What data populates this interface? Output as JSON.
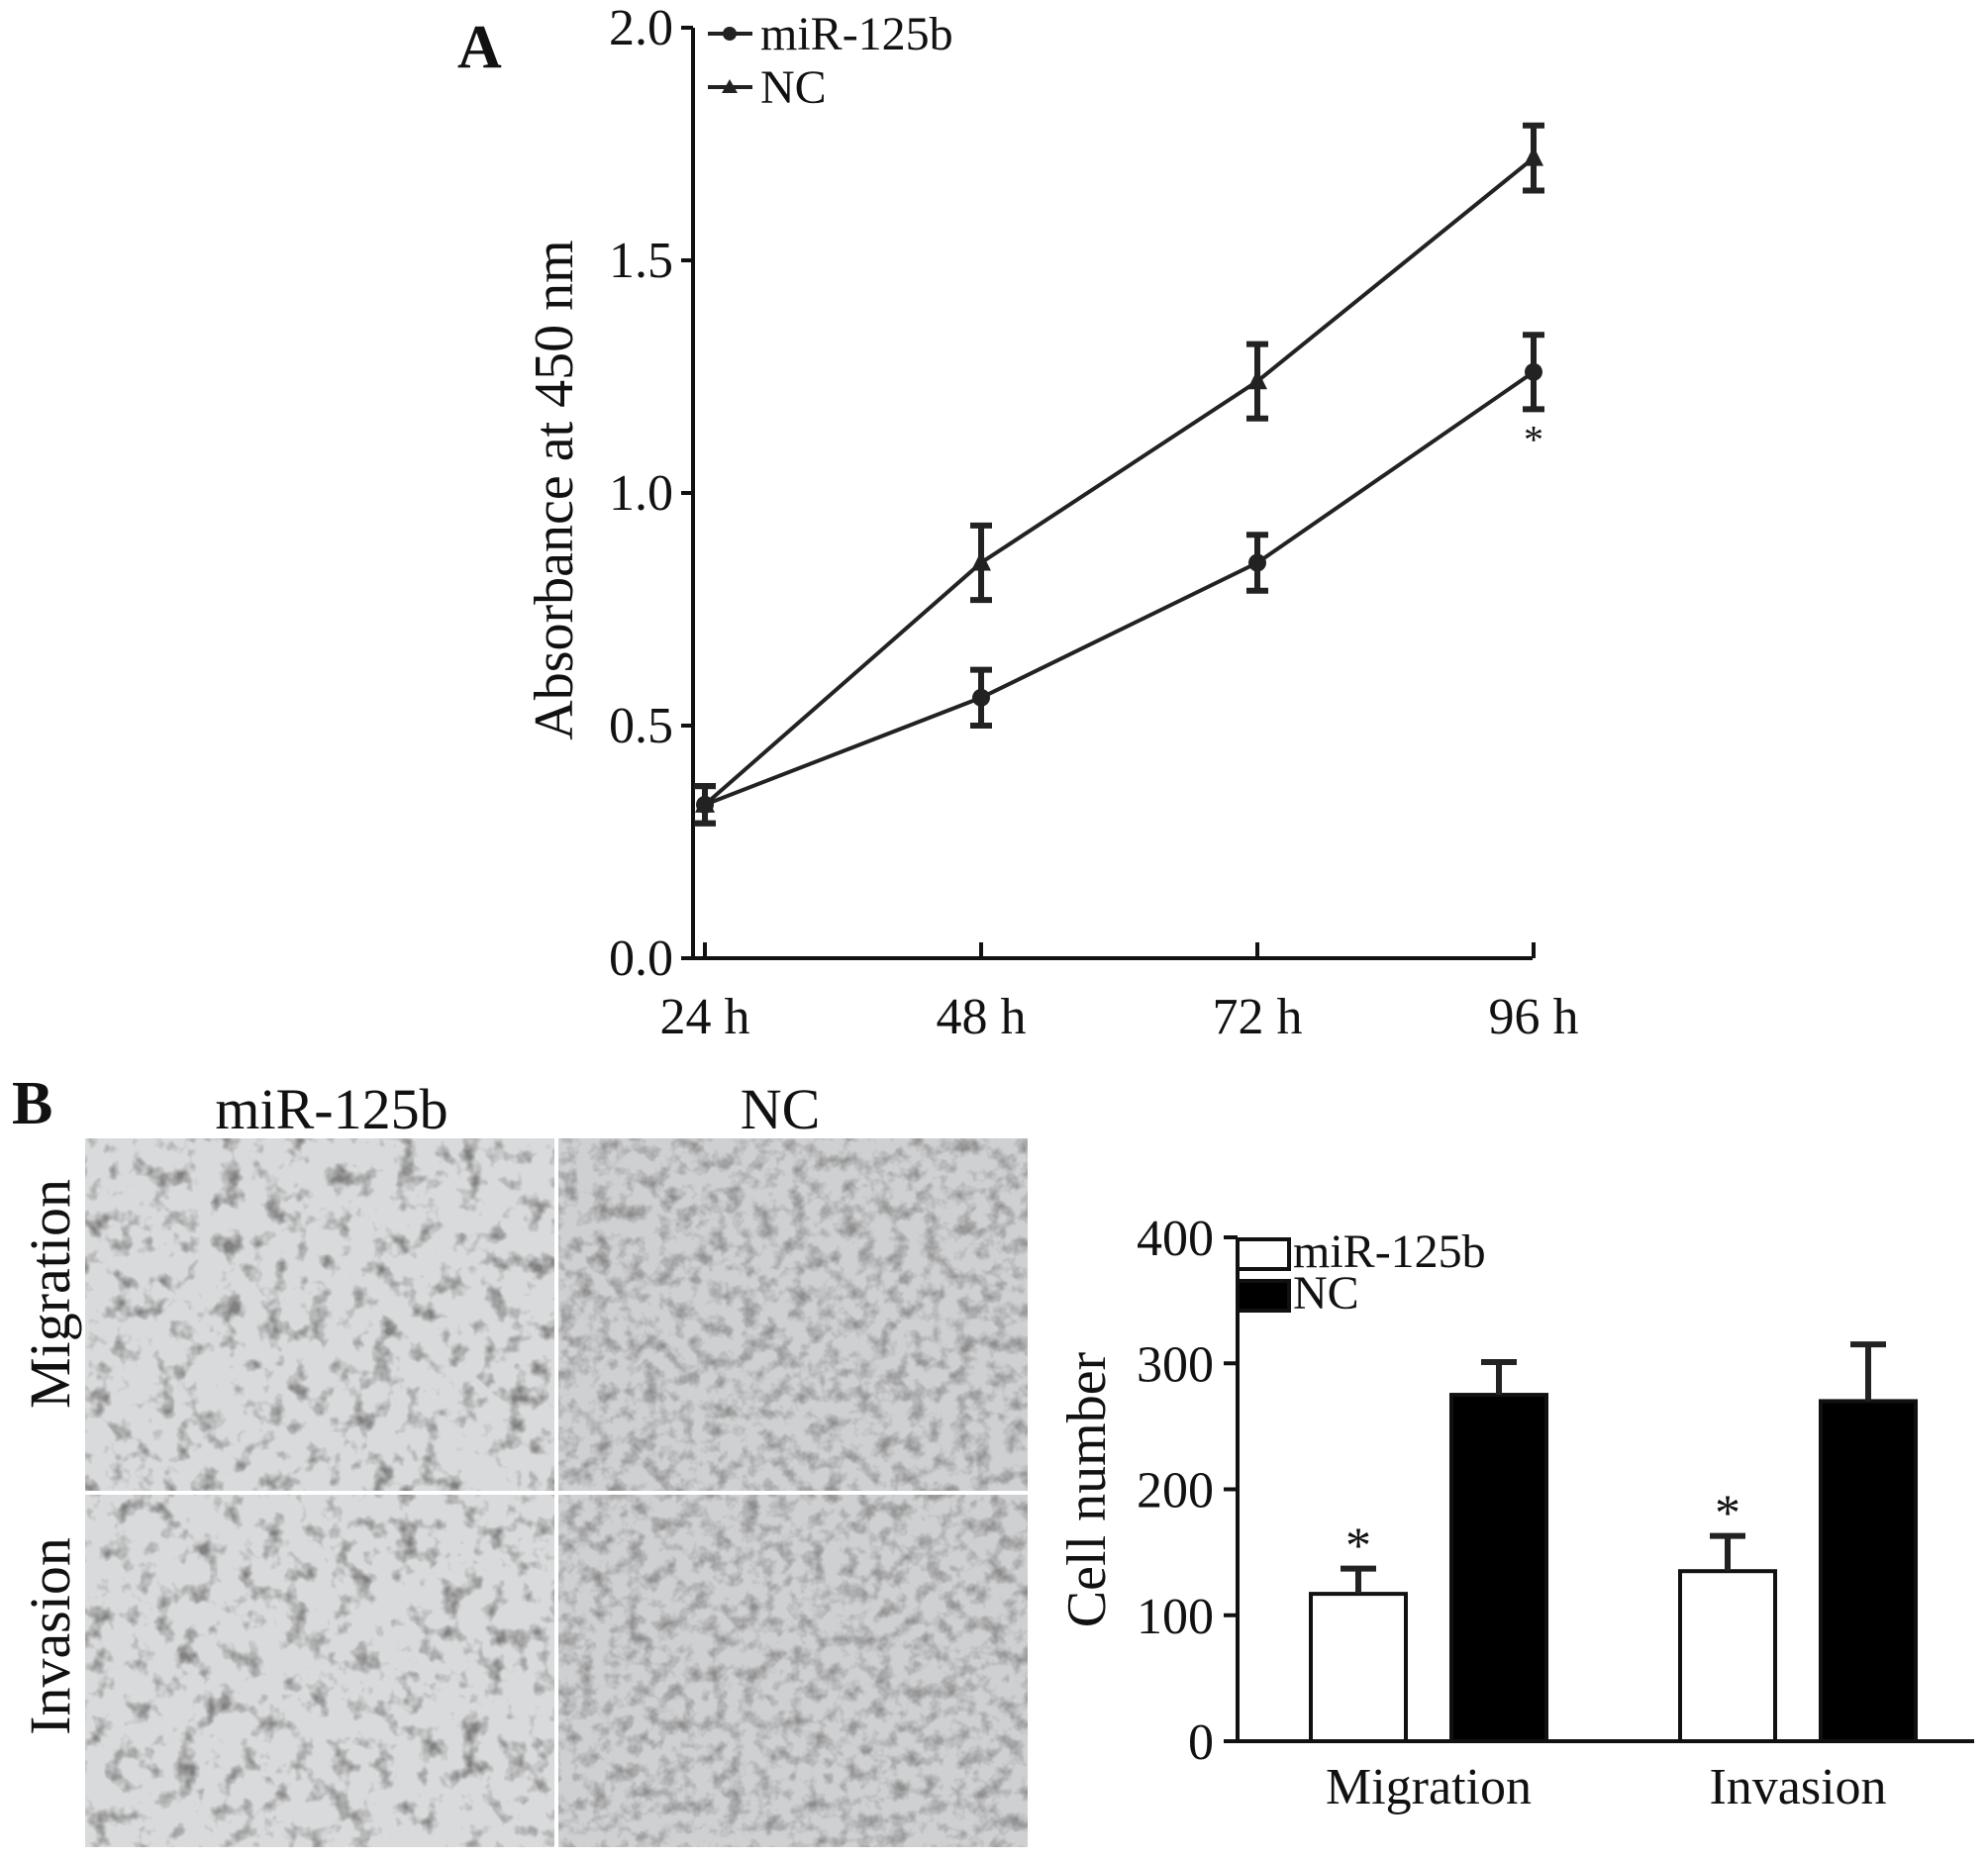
{
  "panels": {
    "a": "A",
    "b": "B"
  },
  "chart_data": [
    {
      "type": "line",
      "panel": "A",
      "ylabel": "Absorbance at 450 nm",
      "xlabel": "",
      "categories": [
        "24 h",
        "48 h",
        "72 h",
        "96 h"
      ],
      "ylim": [
        0,
        2.0
      ],
      "yticks": [
        "0.0",
        "0.5",
        "1.0",
        "1.5",
        "2.0"
      ],
      "series": [
        {
          "name": "miR-125b",
          "marker": "circle",
          "values": [
            0.33,
            0.56,
            0.85,
            1.26
          ],
          "errors": [
            0.04,
            0.06,
            0.06,
            0.08
          ]
        },
        {
          "name": "NC",
          "marker": "triangle",
          "values": [
            0.33,
            0.85,
            1.24,
            1.72
          ],
          "errors": [
            0.04,
            0.08,
            0.08,
            0.07
          ]
        }
      ],
      "annotations": [
        {
          "text": "*",
          "category": "96 h"
        }
      ],
      "legend": "top-left"
    },
    {
      "type": "bar",
      "panel": "B",
      "ylabel": "Cell number",
      "xlabel": "",
      "categories": [
        "Migration",
        "Invasion"
      ],
      "ylim": [
        0,
        400
      ],
      "yticks": [
        "0",
        "100",
        "200",
        "300",
        "400"
      ],
      "series": [
        {
          "name": "miR-125b",
          "color": "#ffffff",
          "values": [
            117,
            135
          ],
          "errors": [
            20,
            28
          ]
        },
        {
          "name": "NC",
          "color": "#000000",
          "values": [
            275,
            270
          ],
          "errors": [
            26,
            45
          ]
        }
      ],
      "annotations": [
        {
          "text": "*",
          "category": "Migration",
          "series": "miR-125b"
        },
        {
          "text": "*",
          "category": "Invasion",
          "series": "miR-125b"
        }
      ],
      "legend": "top-left"
    }
  ],
  "micrographs": {
    "columns": [
      "miR-125b",
      "NC"
    ],
    "rows": [
      "Migration",
      "Invasion"
    ]
  }
}
